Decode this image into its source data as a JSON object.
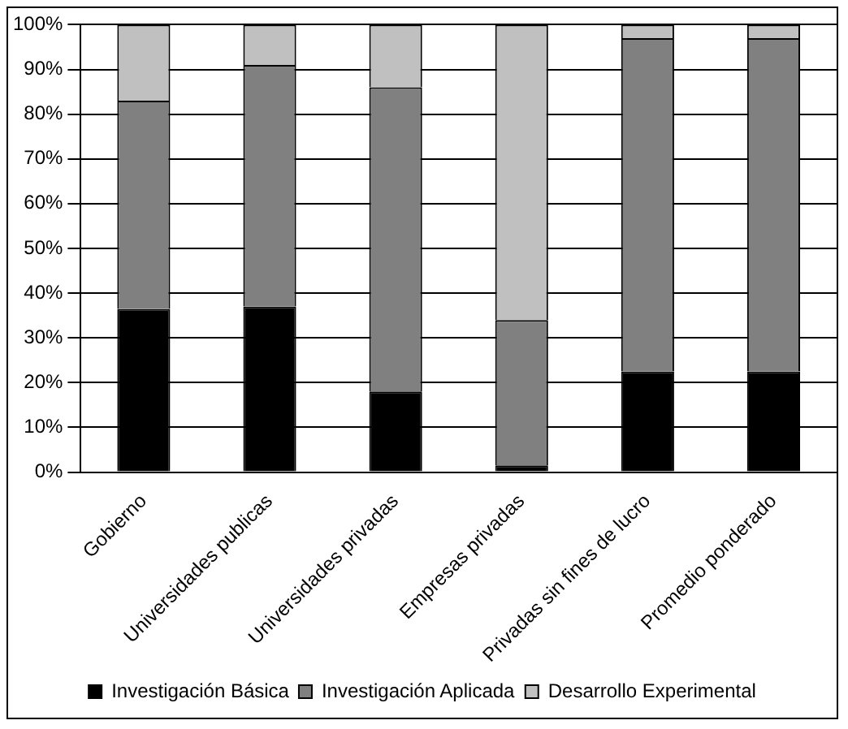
{
  "chart_data": {
    "type": "bar",
    "stacked": true,
    "categories": [
      "Gobierno",
      "Universidades publicas",
      "Universidades privadas",
      "Empresas privadas",
      "Privadas sin fines de lucro",
      "Promedio ponderado"
    ],
    "series": [
      {
        "name": "Investigación Básica",
        "color": "#000000",
        "values": [
          36.5,
          37,
          18,
          1.5,
          22.5,
          22.5
        ]
      },
      {
        "name": "Investigación Aplicada",
        "color": "#808080",
        "values": [
          46.5,
          54,
          68,
          32.5,
          74.5,
          74.5
        ]
      },
      {
        "name": "Desarrollo Experimental",
        "color": "#c0c0c0",
        "values": [
          17,
          9,
          14,
          66,
          3,
          3
        ]
      }
    ],
    "ylim": [
      0,
      100
    ],
    "yticks": [
      {
        "value": 0,
        "label": "0%"
      },
      {
        "value": 10,
        "label": "10%"
      },
      {
        "value": 20,
        "label": "20%"
      },
      {
        "value": 30,
        "label": "30%"
      },
      {
        "value": 40,
        "label": "40%"
      },
      {
        "value": 50,
        "label": "50%"
      },
      {
        "value": 60,
        "label": "60%"
      },
      {
        "value": 70,
        "label": "70%"
      },
      {
        "value": 80,
        "label": "80%"
      },
      {
        "value": 90,
        "label": "90%"
      },
      {
        "value": 100,
        "label": "100%"
      }
    ],
    "grid": "y",
    "legend": "bottom"
  }
}
